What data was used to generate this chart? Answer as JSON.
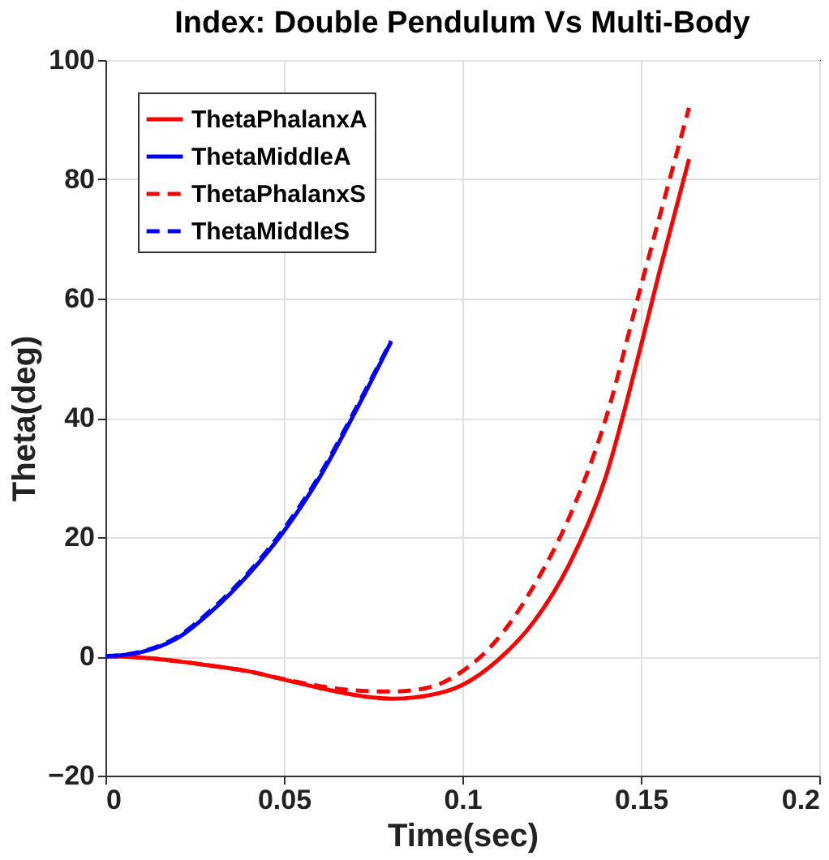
{
  "chart_data": {
    "type": "line",
    "title": "Index: Double Pendulum Vs Multi-Body",
    "xlabel": "Time(sec)",
    "ylabel": "Theta(deg)",
    "xlim": [
      0,
      0.2
    ],
    "xticks": [
      0,
      0.05,
      0.1,
      0.15,
      0.2
    ],
    "ylim": [
      -20,
      100
    ],
    "yticks": [
      -20,
      0,
      20,
      40,
      60,
      80,
      100
    ],
    "grid": true,
    "legend": "top left",
    "marker": "none",
    "series": [
      {
        "name": "ThetaPhalanxA",
        "color": "#ff0000",
        "line_style": "solid",
        "x": [
          0,
          0.01,
          0.02,
          0.03,
          0.04,
          0.05,
          0.06,
          0.07,
          0.08,
          0.09,
          0.1,
          0.11,
          0.12,
          0.13,
          0.14,
          0.15,
          0.155,
          0.1635
        ],
        "values": [
          0,
          -0.2,
          -0.8,
          -1.6,
          -2.5,
          -3.9,
          -5.3,
          -6.5,
          -7.1,
          -6.6,
          -4.8,
          -0.6,
          5.8,
          15.5,
          29.8,
          52,
          64,
          83.4
        ]
      },
      {
        "name": "ThetaMiddleA",
        "color": "#0000ff",
        "line_style": "solid",
        "x": [
          0,
          0.01,
          0.02,
          0.03,
          0.04,
          0.05,
          0.06,
          0.07,
          0.08
        ],
        "values": [
          0,
          0.7,
          3,
          7.7,
          13.7,
          21,
          30,
          41,
          52.7
        ]
      },
      {
        "name": "ThetaPhalanxS",
        "color": "#ff0000",
        "line_style": "dashed",
        "x": [
          0,
          0.01,
          0.02,
          0.03,
          0.04,
          0.05,
          0.06,
          0.07,
          0.08,
          0.09,
          0.1,
          0.11,
          0.12,
          0.13,
          0.14,
          0.15,
          0.1635
        ],
        "values": [
          0,
          -0.2,
          -0.8,
          -1.6,
          -2.5,
          -3.8,
          -5,
          -5.7,
          -5.9,
          -5.3,
          -2.5,
          3,
          11.8,
          23.4,
          39.5,
          62,
          92
        ]
      },
      {
        "name": "ThetaMiddleS",
        "color": "#0000ff",
        "line_style": "dashed",
        "x": [
          0,
          0.01,
          0.02,
          0.03,
          0.04,
          0.05,
          0.06,
          0.07,
          0.08
        ],
        "values": [
          0,
          0.8,
          3.2,
          8,
          14,
          21.4,
          30.4,
          41.4,
          52.9
        ]
      }
    ]
  }
}
